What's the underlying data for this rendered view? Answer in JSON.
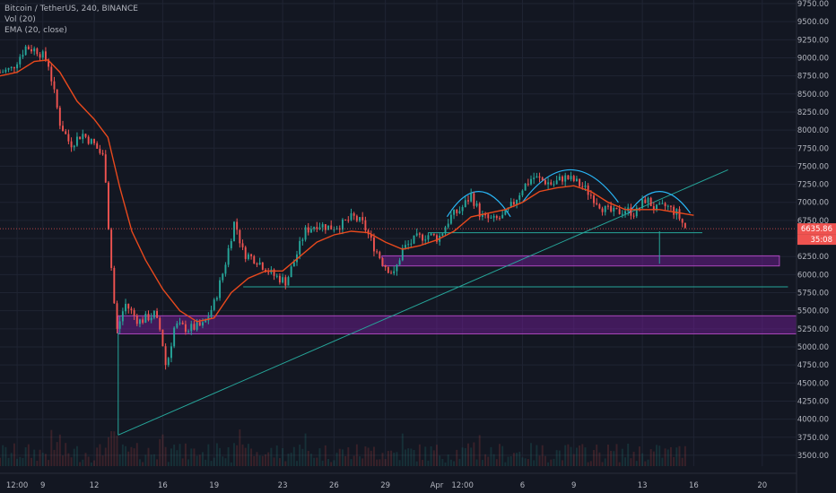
{
  "legend": {
    "title": "Bitcoin / TetherUS, 240, BINANCE",
    "volume": "Vol (20)",
    "ema": "EMA (20, close)"
  },
  "colors": {
    "background": "#131722",
    "grid": "#1f2433",
    "up": "#26a69a",
    "down": "#ef5350",
    "ema": "#e8491d",
    "trendline": "#26a69a",
    "zone_fill": "#7b1fa2",
    "zone_border": "#ab47bc",
    "arc": "#29b6f6",
    "price_line": "#ef5350"
  },
  "chart_data": {
    "type": "candlestick",
    "ylim": [
      3350,
      9800
    ],
    "y_ticks": [
      "9750.00",
      "9500.00",
      "9250.00",
      "9000.00",
      "8750.00",
      "8500.00",
      "8250.00",
      "8000.00",
      "7750.00",
      "7500.00",
      "7250.00",
      "7000.00",
      "6750.00",
      "6500.00",
      "6250.00",
      "6000.00",
      "5750.00",
      "5500.00",
      "5250.00",
      "5000.00",
      "4750.00",
      "4500.00",
      "4250.00",
      "4000.00",
      "3750.00",
      "3500.00"
    ],
    "x_ticks": [
      {
        "label": "12:00",
        "day": 7.5
      },
      {
        "label": "9",
        "day": 9
      },
      {
        "label": "12",
        "day": 12
      },
      {
        "label": "16",
        "day": 16
      },
      {
        "label": "19",
        "day": 19
      },
      {
        "label": "23",
        "day": 23
      },
      {
        "label": "26",
        "day": 26
      },
      {
        "label": "29",
        "day": 29
      },
      {
        "label": "Apr",
        "day": 32
      },
      {
        "label": "12:00",
        "day": 33.5
      },
      {
        "label": "6",
        "day": 37
      },
      {
        "label": "9",
        "day": 40
      },
      {
        "label": "13",
        "day": 44
      },
      {
        "label": "16",
        "day": 47
      },
      {
        "label": "20",
        "day": 51
      }
    ],
    "xlim": [
      6.5,
      53
    ],
    "price_anchors": [
      [
        6.5,
        8800
      ],
      [
        7.2,
        8850
      ],
      [
        8.0,
        9150
      ],
      [
        8.7,
        9100
      ],
      [
        9.3,
        8950
      ],
      [
        10.0,
        8100
      ],
      [
        10.6,
        7800
      ],
      [
        11.3,
        7950
      ],
      [
        12.0,
        7800
      ],
      [
        12.6,
        7600
      ],
      [
        12.9,
        6400
      ],
      [
        13.3,
        5200
      ],
      [
        13.8,
        5600
      ],
      [
        14.6,
        5350
      ],
      [
        15.5,
        5450
      ],
      [
        15.9,
        5200
      ],
      [
        16.2,
        4700
      ],
      [
        16.7,
        5300
      ],
      [
        17.5,
        5250
      ],
      [
        18.4,
        5300
      ],
      [
        19.0,
        5600
      ],
      [
        19.6,
        6100
      ],
      [
        20.2,
        6750
      ],
      [
        20.7,
        6300
      ],
      [
        21.5,
        6200
      ],
      [
        22.4,
        6000
      ],
      [
        23.2,
        5900
      ],
      [
        23.7,
        6200
      ],
      [
        24.3,
        6600
      ],
      [
        25.0,
        6700
      ],
      [
        25.8,
        6650
      ],
      [
        26.5,
        6700
      ],
      [
        27.1,
        6800
      ],
      [
        27.7,
        6700
      ],
      [
        28.3,
        6400
      ],
      [
        28.9,
        6150
      ],
      [
        29.5,
        6000
      ],
      [
        30.0,
        6350
      ],
      [
        30.8,
        6500
      ],
      [
        31.5,
        6550
      ],
      [
        32.1,
        6500
      ],
      [
        32.8,
        6800
      ],
      [
        33.4,
        6900
      ],
      [
        34.0,
        7100
      ],
      [
        34.6,
        6800
      ],
      [
        35.3,
        6750
      ],
      [
        35.9,
        6800
      ],
      [
        36.5,
        7000
      ],
      [
        37.0,
        7200
      ],
      [
        37.6,
        7350
      ],
      [
        38.2,
        7300
      ],
      [
        38.8,
        7250
      ],
      [
        39.4,
        7350
      ],
      [
        40.0,
        7300
      ],
      [
        40.6,
        7200
      ],
      [
        41.2,
        7050
      ],
      [
        41.8,
        6900
      ],
      [
        42.4,
        6850
      ],
      [
        43.0,
        6900
      ],
      [
        43.6,
        6850
      ],
      [
        44.2,
        7050
      ],
      [
        44.8,
        6900
      ],
      [
        45.4,
        6950
      ],
      [
        46.0,
        6850
      ],
      [
        46.5,
        6650
      ]
    ],
    "ema_points": [
      [
        6.5,
        8750
      ],
      [
        7.5,
        8800
      ],
      [
        8.5,
        8950
      ],
      [
        9.3,
        8970
      ],
      [
        10.0,
        8800
      ],
      [
        11.0,
        8400
      ],
      [
        12.0,
        8150
      ],
      [
        12.8,
        7900
      ],
      [
        13.5,
        7200
      ],
      [
        14.2,
        6600
      ],
      [
        15.0,
        6200
      ],
      [
        16.0,
        5800
      ],
      [
        17.0,
        5500
      ],
      [
        18.0,
        5350
      ],
      [
        19.0,
        5400
      ],
      [
        20.0,
        5750
      ],
      [
        21.0,
        5950
      ],
      [
        22.0,
        6050
      ],
      [
        23.0,
        6050
      ],
      [
        24.0,
        6250
      ],
      [
        25.0,
        6450
      ],
      [
        26.0,
        6550
      ],
      [
        27.0,
        6600
      ],
      [
        28.0,
        6580
      ],
      [
        29.0,
        6450
      ],
      [
        30.0,
        6350
      ],
      [
        31.0,
        6400
      ],
      [
        32.0,
        6480
      ],
      [
        33.0,
        6600
      ],
      [
        34.0,
        6800
      ],
      [
        35.0,
        6850
      ],
      [
        36.0,
        6900
      ],
      [
        37.0,
        7000
      ],
      [
        38.0,
        7150
      ],
      [
        39.0,
        7200
      ],
      [
        40.0,
        7230
      ],
      [
        41.0,
        7150
      ],
      [
        42.0,
        7000
      ],
      [
        43.0,
        6900
      ],
      [
        44.0,
        6900
      ],
      [
        45.0,
        6900
      ],
      [
        46.0,
        6860
      ],
      [
        47.0,
        6820
      ]
    ],
    "last_price": "6635.86",
    "countdown": "35:08",
    "annotations": {
      "trendline": [
        [
          13.4,
          3780
        ],
        [
          49.0,
          7450
        ]
      ],
      "support_line_low": [
        [
          20.7,
          5830
        ],
        [
          52.5,
          5830
        ]
      ],
      "neckline": [
        [
          31.5,
          6580
        ],
        [
          47.5,
          6580
        ]
      ],
      "spike_low": [
        [
          13.4,
          3780
        ],
        [
          13.4,
          5200
        ]
      ],
      "spike_drop": [
        [
          45.0,
          6600
        ],
        [
          45.0,
          6150
        ]
      ],
      "zone_upper": [
        [
          28.8,
          6260
        ],
        [
          52.0,
          6120
        ]
      ],
      "zone_lower": [
        [
          13.4,
          5430
        ],
        [
          53.0,
          5180
        ]
      ],
      "arcs": [
        {
          "x0": 32.6,
          "x1": 36.3,
          "peak": 7150,
          "base": 6800
        },
        {
          "x0": 37.0,
          "x1": 42.6,
          "peak": 7450,
          "base": 7000
        },
        {
          "x0": 43.2,
          "x1": 46.8,
          "peak": 7150,
          "base": 6850
        }
      ]
    }
  }
}
